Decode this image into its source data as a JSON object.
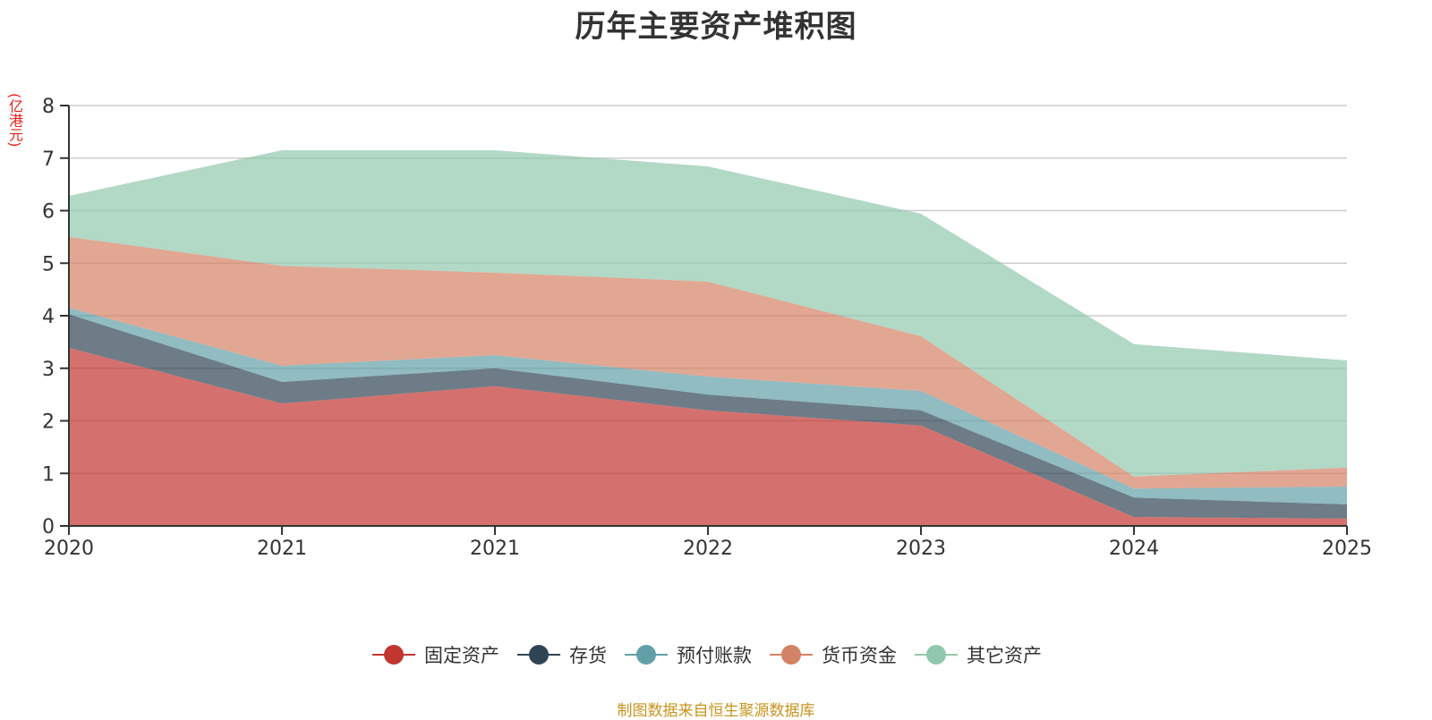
{
  "title": "历年主要资产堆积图",
  "unit_label": "(亿港元)",
  "source_note": "制图数据来自恒生聚源数据库",
  "chart_data": {
    "type": "area",
    "stacked": true,
    "title": "历年主要资产堆积图",
    "xlabel": "",
    "ylabel": "(亿港元)",
    "categories": [
      "2020",
      "2021",
      "2021",
      "2022",
      "2023",
      "2024",
      "2025"
    ],
    "ylim": [
      0,
      8
    ],
    "yticks": [
      0,
      1,
      2,
      3,
      4,
      5,
      6,
      7,
      8
    ],
    "grid": true,
    "legend_position": "bottom",
    "series": [
      {
        "name": "固定资产",
        "color": "#c23531",
        "values": [
          3.39,
          2.33,
          2.66,
          2.2,
          1.91,
          0.17,
          0.14
        ]
      },
      {
        "name": "存货",
        "color": "#2f4554",
        "values": [
          0.64,
          0.41,
          0.34,
          0.3,
          0.29,
          0.37,
          0.27
        ]
      },
      {
        "name": "预付账款",
        "color": "#61a0a8",
        "values": [
          0.12,
          0.31,
          0.25,
          0.34,
          0.37,
          0.17,
          0.34
        ]
      },
      {
        "name": "货币资金",
        "color": "#d48265",
        "values": [
          1.35,
          1.9,
          1.57,
          1.81,
          1.04,
          0.23,
          0.36
        ]
      },
      {
        "name": "其它资产",
        "color": "#91c7ae",
        "values": [
          0.78,
          2.2,
          2.33,
          2.19,
          2.33,
          2.52,
          2.04
        ]
      }
    ]
  }
}
